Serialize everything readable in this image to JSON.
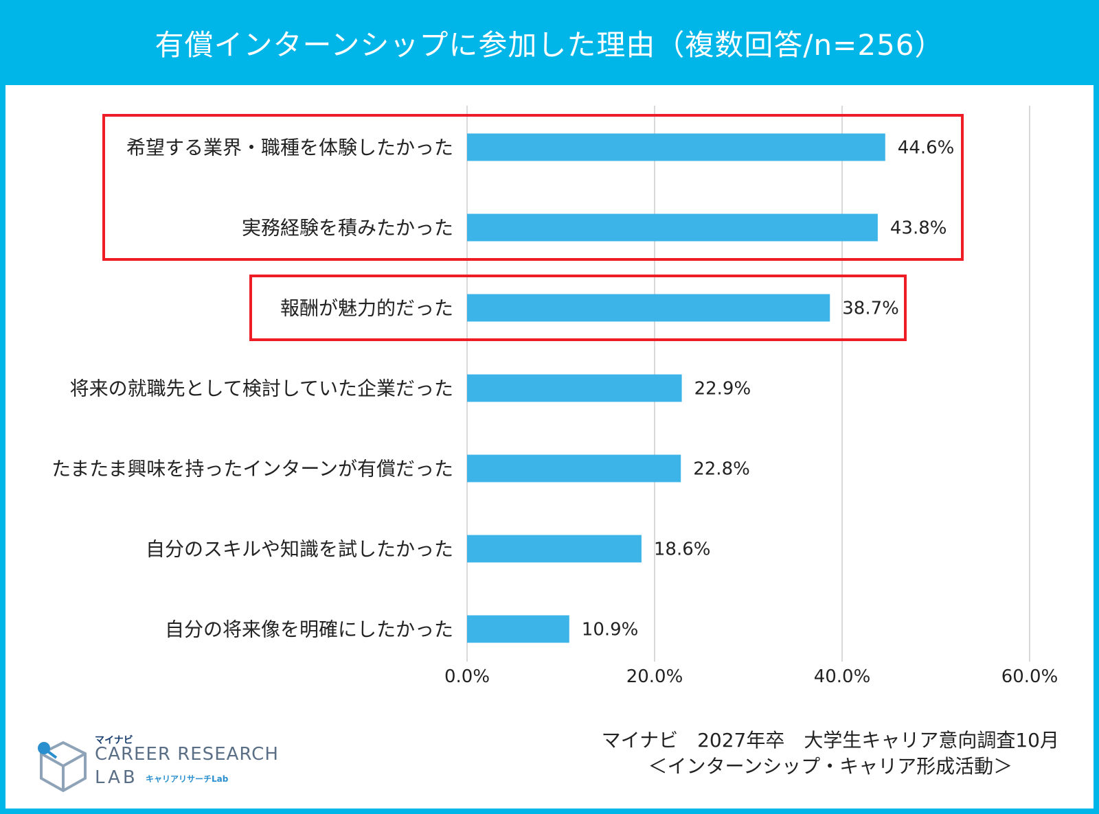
{
  "header": {
    "title": "有償インターンシップに参加した理由（複数回答/n=256）"
  },
  "colors": {
    "header_bg": "#00b5e7",
    "bar": "#3cb4e8",
    "highlight": "#ee1c25",
    "grid": "#d9d9d9"
  },
  "chart_data": {
    "type": "bar",
    "orientation": "horizontal",
    "categories": [
      "希望する業界・職種を体験したかった",
      "実務経験を積みたかった",
      "報酬が魅力的だった",
      "将来の就職先として検討していた企業だった",
      "たまたま興味を持ったインターンが有償だった",
      "自分のスキルや知識を試したかった",
      "自分の将来像を明確にしたかった"
    ],
    "values": [
      44.6,
      43.8,
      38.7,
      22.9,
      22.8,
      18.6,
      10.9
    ],
    "value_labels": [
      "44.6%",
      "43.8%",
      "38.7%",
      "22.9%",
      "22.8%",
      "18.6%",
      "10.9%"
    ],
    "xlim": [
      0,
      60
    ],
    "ticks": [
      0,
      20,
      40,
      60
    ],
    "tick_labels": [
      "0.0%",
      "20.0%",
      "40.0%",
      "60.0%"
    ],
    "grid": true,
    "highlight_groups": [
      [
        0,
        1
      ],
      [
        2
      ]
    ]
  },
  "source": {
    "line1": "マイナビ　2027年卒　大学生キャリア意向調査10月",
    "line2": "＜インターンシップ・キャリア形成活動＞"
  },
  "logo": {
    "small": "マイナビ",
    "line1": "CAREER RESEARCH",
    "line2": "LAB",
    "sub": "キャリアリサーチLab"
  }
}
